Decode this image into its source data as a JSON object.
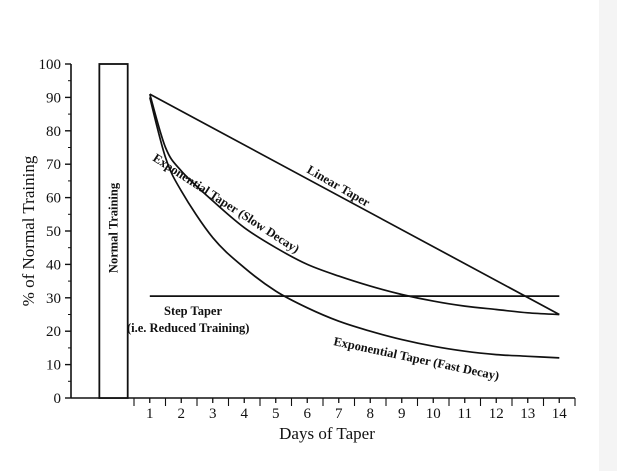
{
  "chart_data": {
    "type": "line",
    "xlabel": "Days of Taper",
    "ylabel": "% of Normal Training",
    "xlim": [
      -1.5,
      14.5
    ],
    "ylim": [
      0,
      100
    ],
    "x_ticks": [
      1,
      2,
      3,
      4,
      5,
      6,
      7,
      8,
      9,
      10,
      11,
      12,
      13,
      14
    ],
    "y_ticks": [
      0,
      10,
      20,
      30,
      40,
      50,
      60,
      70,
      80,
      90,
      100
    ],
    "grid": false,
    "normal_training": {
      "label": "Normal Training",
      "value": 100,
      "x_range": [
        -0.6,
        0.3
      ]
    },
    "series": [
      {
        "name": "Linear Taper",
        "x": [
          1,
          14
        ],
        "values": [
          91,
          25
        ]
      },
      {
        "name": "Exponential Taper (Slow Decay)",
        "x": [
          1,
          1.5,
          2,
          3,
          4,
          5,
          6,
          7,
          8,
          9,
          10,
          11,
          12,
          13,
          14
        ],
        "values": [
          91,
          75,
          68,
          59,
          51,
          45,
          40,
          36.5,
          33.5,
          31,
          29,
          27.5,
          26.5,
          25.5,
          25
        ]
      },
      {
        "name": "Exponential Taper (Fast Decay)",
        "x": [
          1,
          1.5,
          2,
          3,
          4,
          5,
          6,
          7,
          8,
          9,
          10,
          11,
          12,
          13,
          14
        ],
        "values": [
          90,
          72,
          62,
          48,
          39,
          32,
          27,
          23,
          20,
          17.5,
          15.5,
          14,
          13,
          12.5,
          12
        ]
      },
      {
        "name": "Step Taper (i.e. Reduced Training)",
        "x": [
          1,
          14
        ],
        "values": [
          30.5,
          30.5
        ]
      }
    ],
    "annotations": {
      "linear": "Linear Taper",
      "slow": "Exponential Taper (Slow Decay)",
      "fast": "Exponential Taper (Fast Decay)",
      "step_line1": "Step Taper",
      "step_line2": "(i.e. Reduced Training)"
    }
  }
}
